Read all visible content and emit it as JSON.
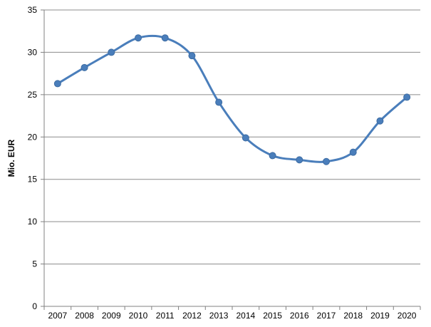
{
  "chart_data": {
    "type": "line",
    "title": "",
    "xlabel": "",
    "ylabel": "Mio. EUR",
    "ylim": [
      0,
      35
    ],
    "yticks": [
      0,
      5,
      10,
      15,
      20,
      25,
      30,
      35
    ],
    "grid": true,
    "legend": "none",
    "categories": [
      "2007",
      "2008",
      "2009",
      "2010",
      "2011",
      "2012",
      "2013",
      "2014",
      "2015",
      "2016",
      "2017",
      "2018",
      "2019",
      "2020"
    ],
    "series": [
      {
        "values": [
          26.3,
          28.2,
          30.0,
          31.7,
          31.7,
          29.6,
          24.1,
          19.9,
          17.8,
          17.3,
          17.1,
          18.2,
          21.9,
          24.7
        ],
        "color": "#4a7ebb"
      }
    ]
  }
}
